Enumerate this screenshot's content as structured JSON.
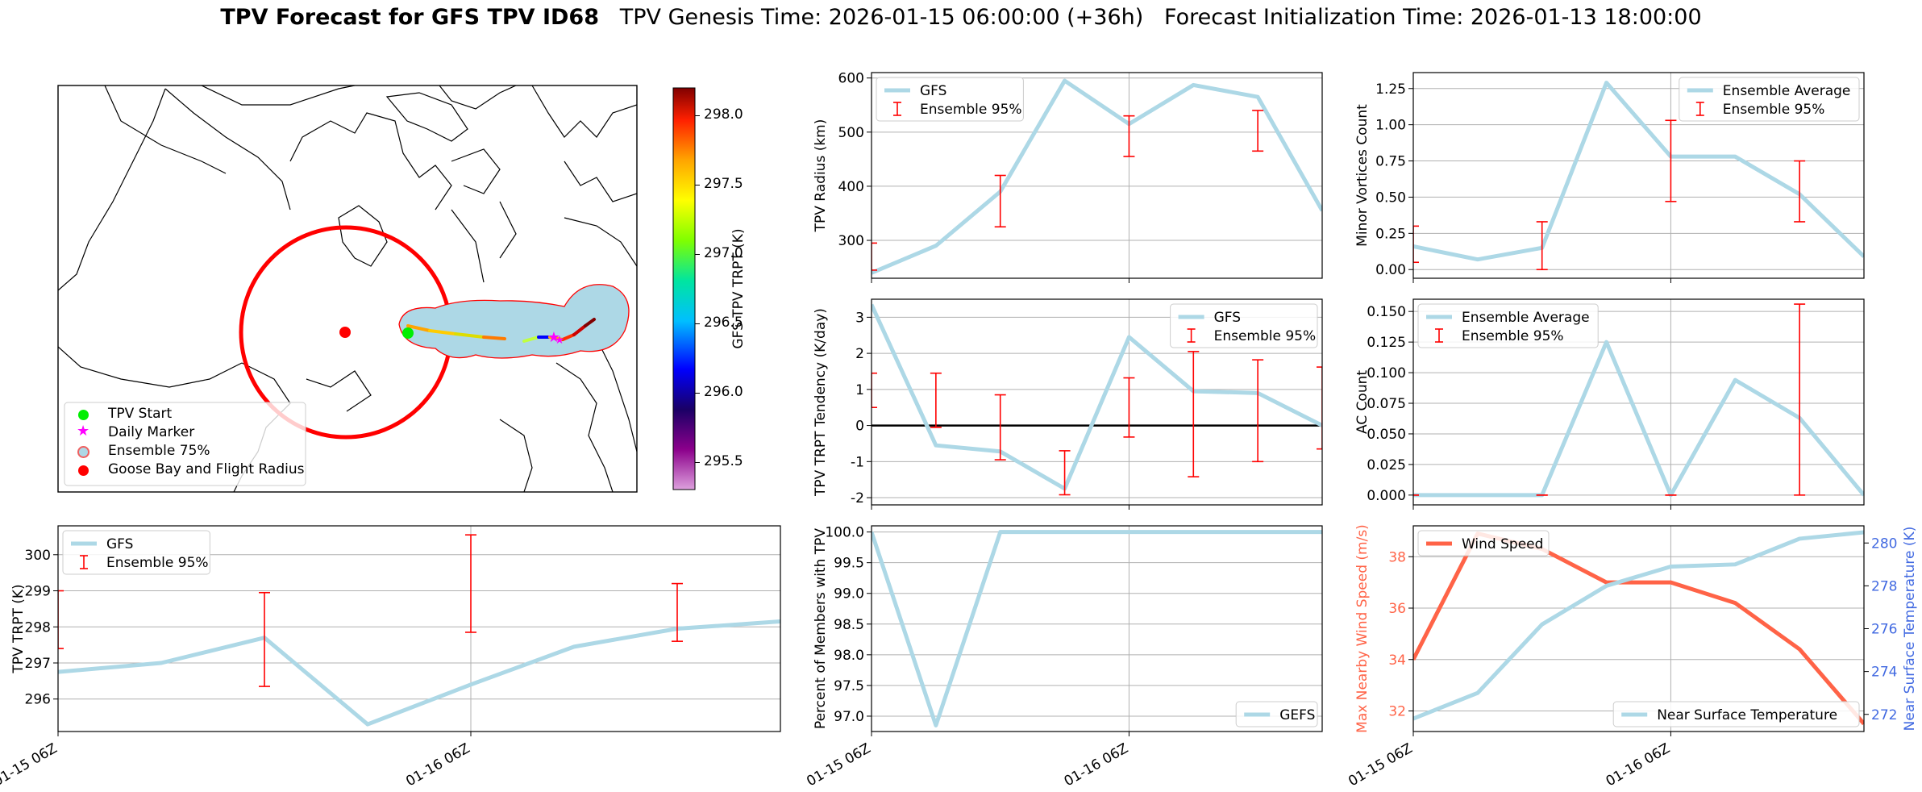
{
  "title": {
    "bold": "TPV Forecast for GFS TPV ID68",
    "rest": "TPV Genesis Time: 2026-01-15 06:00:00 (+36h)   Forecast Initialization Time: 2026-01-13 18:00:00"
  },
  "colors": {
    "line": "#add8e6",
    "error": "#ff0000",
    "wind": "#ff6347",
    "temp_axis": "#4169e1",
    "zero_line": "#000000"
  },
  "map": {
    "colorbar_label": "GFS TPV TRPT (K)",
    "colorbar_ticks": [
      "298.0",
      "297.5",
      "297.0",
      "296.5",
      "296.0",
      "295.5"
    ],
    "colorbar_range": [
      295.3,
      298.2
    ],
    "legend": [
      {
        "label": "TPV Start",
        "marker": "green-dot-icon",
        "color": "#00ee00"
      },
      {
        "label": "Daily Marker",
        "marker": "magenta-star-icon",
        "color": "#ff00ff"
      },
      {
        "label": "Ensemble 75%",
        "marker": "hollow-circle-icon",
        "color": "#f4a6a6"
      },
      {
        "label": "Goose Bay and Flight Radius",
        "marker": "red-dot-icon",
        "color": "#ff0000"
      }
    ]
  },
  "chart_data": [
    {
      "id": "radius",
      "type": "line",
      "ylabel": "TPV Radius (km)",
      "x": [
        0,
        1,
        2,
        3,
        4,
        5,
        6,
        7
      ],
      "ylim": [
        230,
        610
      ],
      "yticks": [
        300,
        400,
        500,
        600
      ],
      "series": [
        {
          "name": "GFS",
          "values": [
            240,
            290,
            390,
            595,
            515,
            587,
            565,
            355
          ]
        }
      ],
      "errorbars": {
        "name": "Ensemble 95%",
        "x": [
          0,
          2,
          4,
          6
        ],
        "low": [
          245,
          325,
          455,
          465
        ],
        "high": [
          295,
          420,
          530,
          540
        ]
      },
      "legend_loc": "upper left",
      "xticks": [
        "01-15 06Z",
        "01-16 06Z"
      ],
      "grid": true
    },
    {
      "id": "minor_vortices",
      "type": "line",
      "ylabel": "Minor Vortices Count",
      "x": [
        0,
        1,
        2,
        3,
        4,
        5,
        6,
        7
      ],
      "ylim": [
        -0.06,
        1.36
      ],
      "yticks": [
        0.0,
        0.25,
        0.5,
        0.75,
        1.0,
        1.25
      ],
      "ytick_labels": [
        "0.00",
        "0.25",
        "0.50",
        "0.75",
        "1.00",
        "1.25"
      ],
      "series": [
        {
          "name": "Ensemble Average",
          "values": [
            0.16,
            0.07,
            0.15,
            1.29,
            0.78,
            0.78,
            0.52,
            0.09
          ]
        }
      ],
      "errorbars": {
        "name": "Ensemble 95%",
        "x": [
          0,
          2,
          4,
          6
        ],
        "low": [
          0.05,
          0.0,
          0.47,
          0.33
        ],
        "high": [
          0.3,
          0.33,
          1.03,
          0.75
        ]
      },
      "legend_loc": "upper right",
      "xticks": [
        "01-15 06Z",
        "01-16 06Z"
      ],
      "grid": true
    },
    {
      "id": "trpt_tendency",
      "type": "line",
      "ylabel": "TPV TRPT Tendency (K/day)",
      "x": [
        0,
        1,
        2,
        3,
        4,
        5,
        6,
        7
      ],
      "ylim": [
        -2.2,
        3.5
      ],
      "yticks": [
        -2,
        -1,
        0,
        1,
        2,
        3
      ],
      "zero_line": true,
      "series": [
        {
          "name": "GFS",
          "values": [
            3.35,
            -0.55,
            -0.72,
            -1.75,
            2.45,
            0.95,
            0.9,
            0.0
          ]
        }
      ],
      "errorbars": {
        "name": "Ensemble 95%",
        "x": [
          0,
          1,
          2,
          3,
          4,
          5,
          6,
          7
        ],
        "low": [
          0.5,
          -0.05,
          -0.95,
          -1.92,
          -0.32,
          -1.42,
          -1.0,
          -0.65
        ],
        "high": [
          1.45,
          1.45,
          0.85,
          -0.7,
          1.32,
          2.05,
          1.82,
          1.62
        ]
      },
      "legend_loc": "upper right",
      "xticks": [
        "01-15 06Z",
        "01-16 06Z"
      ],
      "grid": true
    },
    {
      "id": "ac_count",
      "type": "line",
      "ylabel": "AC Count",
      "x": [
        0,
        1,
        2,
        3,
        4,
        5,
        6,
        7
      ],
      "ylim": [
        -0.008,
        0.16
      ],
      "yticks": [
        0.0,
        0.025,
        0.05,
        0.075,
        0.1,
        0.125,
        0.15
      ],
      "ytick_labels": [
        "0.000",
        "0.025",
        "0.050",
        "0.075",
        "0.100",
        "0.125",
        "0.150"
      ],
      "series": [
        {
          "name": "Ensemble Average",
          "values": [
            0.0,
            0.0,
            0.0,
            0.125,
            0.0,
            0.094,
            0.063,
            0.0
          ]
        }
      ],
      "errorbars": {
        "name": "Ensemble 95%",
        "x": [
          0,
          2,
          4,
          6
        ],
        "low": [
          0.0,
          0.0,
          0.0,
          0.0
        ],
        "high": [
          0.0,
          0.0,
          0.0,
          0.156
        ]
      },
      "legend_loc": "upper left",
      "xticks": [
        "01-15 06Z",
        "01-16 06Z"
      ],
      "grid": true
    },
    {
      "id": "trpt",
      "type": "line",
      "ylabel": "TPV TRPT (K)",
      "x": [
        0,
        1,
        2,
        3,
        4,
        5,
        6,
        7
      ],
      "ylim": [
        295.1,
        300.8
      ],
      "yticks": [
        296,
        297,
        298,
        299,
        300
      ],
      "series": [
        {
          "name": "GFS",
          "values": [
            296.75,
            297.0,
            297.7,
            295.3,
            296.4,
            297.45,
            297.95,
            298.15
          ]
        }
      ],
      "errorbars": {
        "name": "Ensemble 95%",
        "x": [
          0,
          2,
          4,
          6
        ],
        "low": [
          297.4,
          296.35,
          297.85,
          297.6
        ],
        "high": [
          299.0,
          298.95,
          300.55,
          299.2
        ]
      },
      "legend_loc": "upper left",
      "xticks": [
        "01-15 06Z",
        "01-16 06Z"
      ],
      "grid": true
    },
    {
      "id": "percent_members",
      "type": "line",
      "ylabel": "Percent of Members with TPV",
      "x": [
        0,
        1,
        2,
        3,
        4,
        5,
        6,
        7
      ],
      "ylim": [
        96.75,
        100.1
      ],
      "yticks": [
        97.0,
        97.5,
        98.0,
        98.5,
        99.0,
        99.5,
        100.0
      ],
      "ytick_labels": [
        "97.0",
        "97.5",
        "98.0",
        "98.5",
        "99.0",
        "99.5",
        "100.0"
      ],
      "series": [
        {
          "name": "GEFS",
          "values": [
            100.0,
            96.85,
            100.0,
            100.0,
            100.0,
            100.0,
            100.0,
            100.0
          ]
        }
      ],
      "legend_loc": "lower right",
      "xticks": [
        "01-15 06Z",
        "01-16 06Z"
      ],
      "grid": true
    },
    {
      "id": "wind_temp",
      "type": "line",
      "ylabel": "Max Nearby Wind Speed (m/s)",
      "ylabel2": "Near Surface Temperature (K)",
      "x": [
        0,
        1,
        2,
        3,
        4,
        5,
        6,
        7
      ],
      "ylim": [
        31.2,
        39.2
      ],
      "yticks": [
        32,
        34,
        36,
        38
      ],
      "ylim2": [
        271.2,
        280.8
      ],
      "yticks2": [
        272,
        274,
        276,
        278,
        280
      ],
      "series": [
        {
          "name": "Wind Speed",
          "axis": "left",
          "values": [
            34.0,
            38.9,
            38.3,
            37.0,
            37.0,
            36.2,
            34.4,
            31.5
          ]
        },
        {
          "name": "Near Surface Temperature",
          "axis": "right",
          "values": [
            271.8,
            273.0,
            276.2,
            278.0,
            278.9,
            279.0,
            280.2,
            280.5
          ]
        }
      ],
      "legend_loc": "split",
      "xticks": [
        "01-15 06Z",
        "01-16 06Z"
      ],
      "grid": true
    }
  ]
}
